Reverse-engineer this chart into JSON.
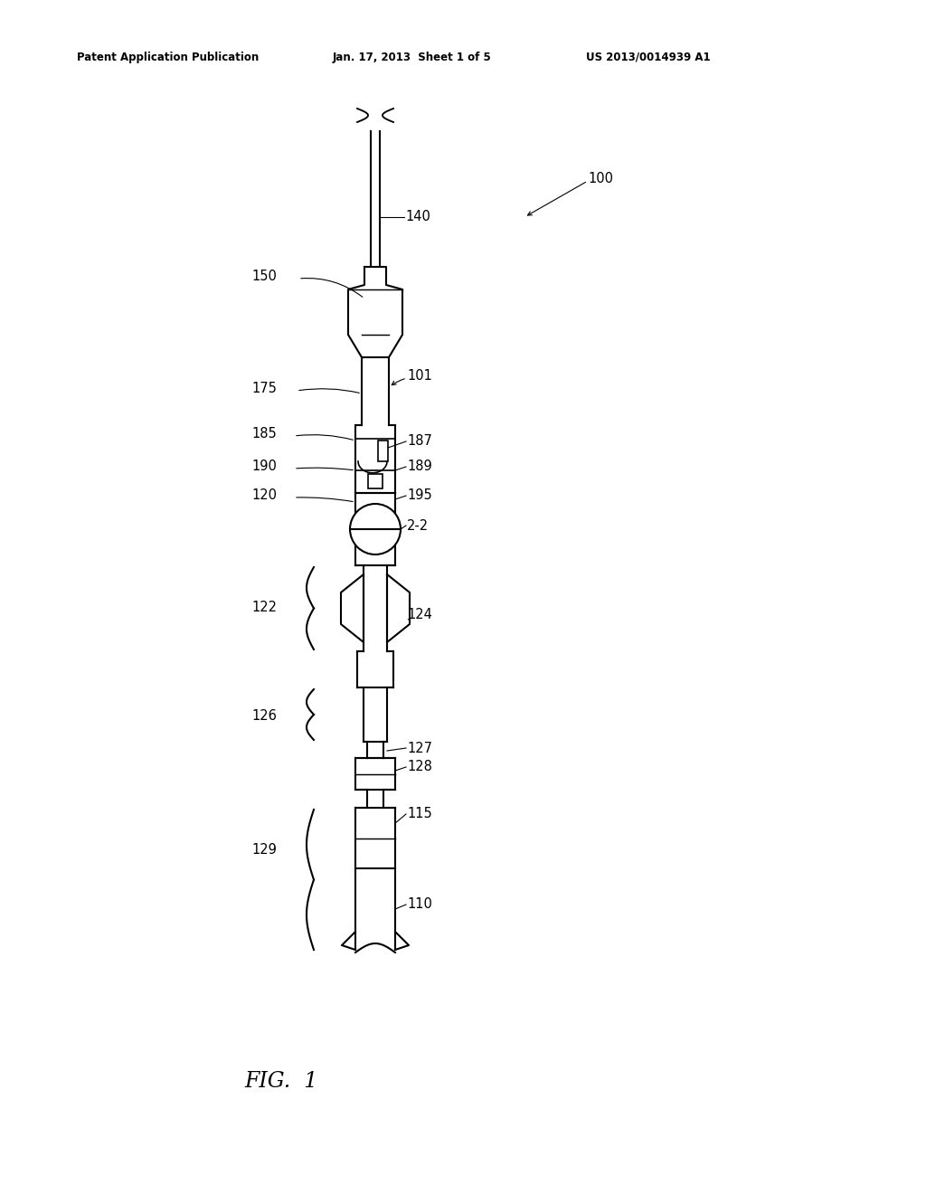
{
  "bg_color": "#ffffff",
  "header_left": "Patent Application Publication",
  "header_mid": "Jan. 17, 2013  Sheet 1 of 5",
  "header_right": "US 2013/0014939 A1",
  "fig_label": "FIG.  1",
  "ref_100": "100",
  "ref_140": "140",
  "ref_150": "150",
  "ref_175": "175",
  "ref_101": "101",
  "ref_185": "185",
  "ref_187": "187",
  "ref_190": "190",
  "ref_189": "189",
  "ref_120": "120",
  "ref_195": "195",
  "ref_22": "2-2",
  "ref_122": "122",
  "ref_124": "124",
  "ref_126": "126",
  "ref_127": "127",
  "ref_128": "128",
  "ref_129": "129",
  "ref_115": "115",
  "ref_110": "110"
}
